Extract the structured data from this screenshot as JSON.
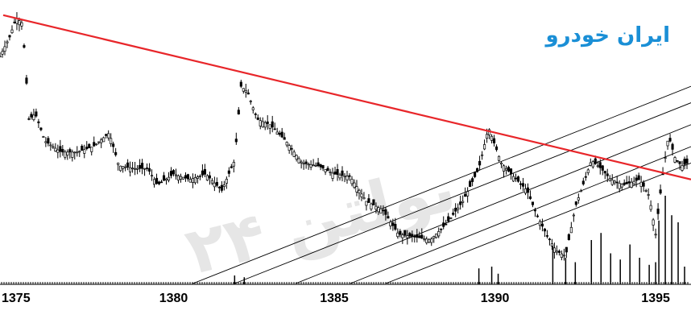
{
  "chart_data": {
    "type": "candlestick",
    "title": "ایران خودرو",
    "watermark": "بولتن ۲۴",
    "xlabel": "",
    "ylabel": "",
    "x_ticks": [
      "1375",
      "1380",
      "1385",
      "1390",
      "1395"
    ],
    "xlim": [
      1374.6,
      1396.1
    ],
    "grid": false,
    "colors": {
      "candles": "#000000",
      "trendline": "#e8262a",
      "channels": "#000000",
      "volume": "#000000",
      "title": "#1a8fd6"
    },
    "price_path": [
      [
        1374.6,
        0.83
      ],
      [
        1374.9,
        0.9
      ],
      [
        1375.1,
        0.97
      ],
      [
        1375.3,
        0.95
      ],
      [
        1375.5,
        0.6
      ],
      [
        1375.7,
        0.62
      ],
      [
        1376.0,
        0.52
      ],
      [
        1376.5,
        0.48
      ],
      [
        1377.0,
        0.48
      ],
      [
        1377.5,
        0.5
      ],
      [
        1378.0,
        0.55
      ],
      [
        1378.3,
        0.43
      ],
      [
        1378.8,
        0.42
      ],
      [
        1379.2,
        0.42
      ],
      [
        1379.5,
        0.36
      ],
      [
        1380.0,
        0.4
      ],
      [
        1380.5,
        0.38
      ],
      [
        1381.0,
        0.4
      ],
      [
        1381.5,
        0.34
      ],
      [
        1381.9,
        0.45
      ],
      [
        1382.1,
        0.72
      ],
      [
        1382.3,
        0.7
      ],
      [
        1382.6,
        0.6
      ],
      [
        1383.0,
        0.58
      ],
      [
        1383.5,
        0.52
      ],
      [
        1384.0,
        0.44
      ],
      [
        1384.5,
        0.43
      ],
      [
        1385.0,
        0.4
      ],
      [
        1385.5,
        0.39
      ],
      [
        1386.0,
        0.3
      ],
      [
        1386.5,
        0.27
      ],
      [
        1387.0,
        0.18
      ],
      [
        1387.5,
        0.17
      ],
      [
        1388.0,
        0.16
      ],
      [
        1388.5,
        0.22
      ],
      [
        1389.0,
        0.3
      ],
      [
        1389.5,
        0.42
      ],
      [
        1389.8,
        0.57
      ],
      [
        1390.2,
        0.44
      ],
      [
        1390.5,
        0.4
      ],
      [
        1391.0,
        0.34
      ],
      [
        1391.3,
        0.25
      ],
      [
        1391.6,
        0.18
      ],
      [
        1391.9,
        0.12
      ],
      [
        1392.2,
        0.1
      ],
      [
        1392.5,
        0.28
      ],
      [
        1392.8,
        0.38
      ],
      [
        1393.0,
        0.45
      ],
      [
        1393.3,
        0.42
      ],
      [
        1393.6,
        0.38
      ],
      [
        1394.0,
        0.36
      ],
      [
        1394.5,
        0.38
      ],
      [
        1394.8,
        0.32
      ],
      [
        1395.0,
        0.18
      ],
      [
        1395.2,
        0.38
      ],
      [
        1395.4,
        0.54
      ],
      [
        1395.6,
        0.46
      ],
      [
        1395.8,
        0.43
      ],
      [
        1396.0,
        0.44
      ]
    ],
    "volume_spikes": [
      [
        1381.9,
        0.1
      ],
      [
        1382.2,
        0.08
      ],
      [
        1389.5,
        0.18
      ],
      [
        1389.9,
        0.2
      ],
      [
        1390.1,
        0.12
      ],
      [
        1391.8,
        0.45
      ],
      [
        1392.2,
        0.3
      ],
      [
        1392.5,
        0.25
      ],
      [
        1393.0,
        0.5
      ],
      [
        1393.3,
        0.58
      ],
      [
        1393.6,
        0.35
      ],
      [
        1393.9,
        0.28
      ],
      [
        1394.2,
        0.45
      ],
      [
        1394.5,
        0.3
      ],
      [
        1394.8,
        0.22
      ],
      [
        1395.0,
        0.25
      ],
      [
        1395.1,
        0.72
      ],
      [
        1395.3,
        1.0
      ],
      [
        1395.5,
        0.78
      ],
      [
        1395.7,
        0.7
      ],
      [
        1395.9,
        0.2
      ]
    ],
    "lines": [
      {
        "name": "",
        "kind": "trendline",
        "from": [
          1374.7,
          0.98
        ],
        "to": [
          1396.1,
          0.38
        ]
      },
      {
        "name": "",
        "kind": "channel",
        "from": [
          1380.6,
          0.0
        ],
        "to": [
          1396.1,
          0.72
        ]
      },
      {
        "name": "",
        "kind": "channel",
        "from": [
          1381.9,
          0.0
        ],
        "to": [
          1396.1,
          0.66
        ]
      },
      {
        "name": "",
        "kind": "channel",
        "from": [
          1383.8,
          0.0
        ],
        "to": [
          1396.1,
          0.58
        ]
      },
      {
        "name": "",
        "kind": "channel",
        "from": [
          1385.5,
          0.0
        ],
        "to": [
          1396.1,
          0.5
        ]
      },
      {
        "name": "",
        "kind": "channel",
        "from": [
          1386.6,
          0.0
        ],
        "to": [
          1396.1,
          0.44
        ]
      }
    ]
  }
}
